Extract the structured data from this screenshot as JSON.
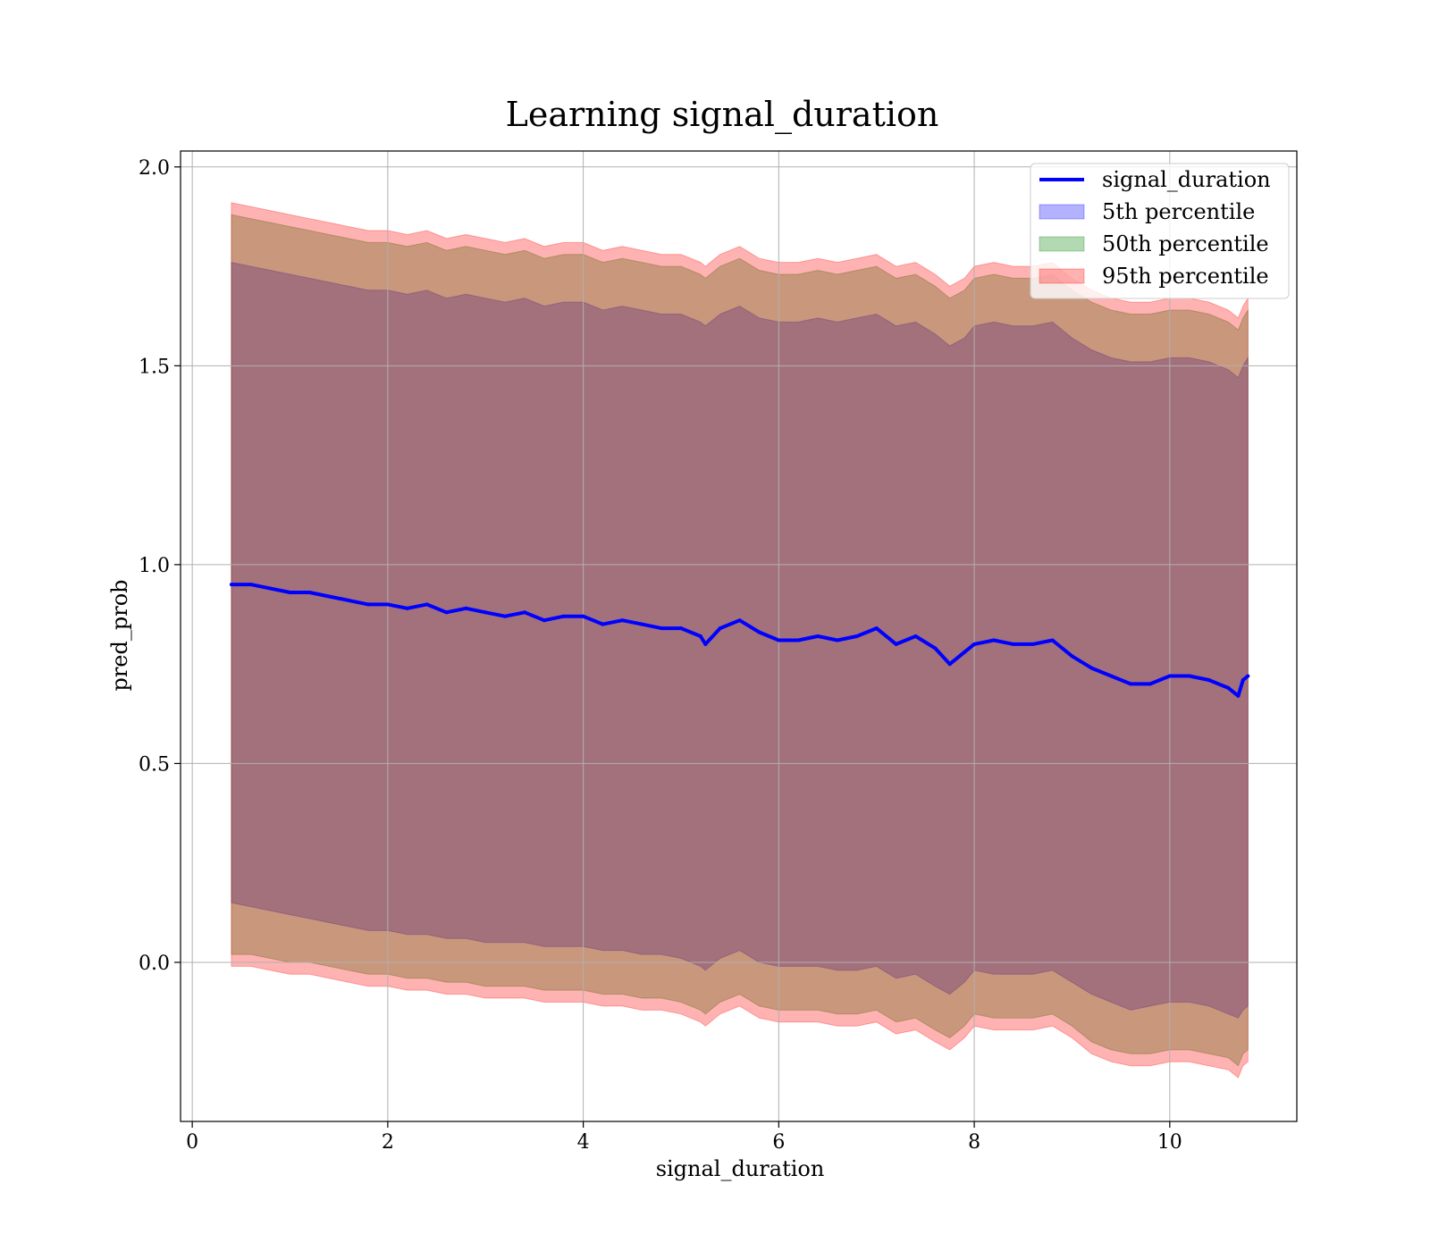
{
  "chart_data": {
    "type": "area",
    "title": "Learning signal_duration",
    "xlabel": "signal_duration",
    "ylabel": "pred_prob",
    "xlim": [
      -0.12,
      11.3
    ],
    "ylim": [
      -0.4,
      2.04
    ],
    "xticks": [
      0,
      2,
      4,
      6,
      8,
      10
    ],
    "yticks": [
      0.0,
      0.5,
      1.0,
      1.5,
      2.0
    ],
    "xtick_labels": [
      "0",
      "2",
      "4",
      "6",
      "8",
      "10"
    ],
    "ytick_labels": [
      "0.0",
      "0.5",
      "1.0",
      "1.5",
      "2.0"
    ],
    "grid": true,
    "legend_position": "top-right",
    "x": [
      0.4,
      0.6,
      0.8,
      1.0,
      1.2,
      1.4,
      1.6,
      1.8,
      2.0,
      2.2,
      2.4,
      2.6,
      2.8,
      3.0,
      3.2,
      3.4,
      3.6,
      3.8,
      4.0,
      4.2,
      4.4,
      4.6,
      4.8,
      5.0,
      5.2,
      5.25,
      5.4,
      5.6,
      5.8,
      6.0,
      6.2,
      6.4,
      6.6,
      6.8,
      7.0,
      7.2,
      7.4,
      7.6,
      7.75,
      7.9,
      8.0,
      8.2,
      8.4,
      8.6,
      8.8,
      9.0,
      9.2,
      9.4,
      9.6,
      9.8,
      10.0,
      10.2,
      10.4,
      10.6,
      10.7,
      10.75,
      10.8
    ],
    "series": [
      {
        "name": "signal_duration",
        "kind": "line",
        "color": "#0000ff",
        "values": [
          0.95,
          0.95,
          0.94,
          0.93,
          0.93,
          0.92,
          0.91,
          0.9,
          0.9,
          0.89,
          0.9,
          0.88,
          0.89,
          0.88,
          0.87,
          0.88,
          0.86,
          0.87,
          0.87,
          0.85,
          0.86,
          0.85,
          0.84,
          0.84,
          0.82,
          0.8,
          0.84,
          0.86,
          0.83,
          0.81,
          0.81,
          0.82,
          0.81,
          0.82,
          0.84,
          0.8,
          0.82,
          0.79,
          0.75,
          0.78,
          0.8,
          0.81,
          0.8,
          0.8,
          0.81,
          0.77,
          0.74,
          0.72,
          0.7,
          0.7,
          0.72,
          0.72,
          0.71,
          0.69,
          0.67,
          0.71,
          0.72
        ]
      },
      {
        "name": "5th percentile",
        "kind": "band",
        "color": "#0000ff",
        "opacity": 0.3,
        "lower": [
          0.15,
          0.14,
          0.13,
          0.12,
          0.11,
          0.1,
          0.09,
          0.08,
          0.08,
          0.07,
          0.07,
          0.06,
          0.06,
          0.05,
          0.05,
          0.05,
          0.04,
          0.04,
          0.04,
          0.03,
          0.03,
          0.02,
          0.02,
          0.01,
          -0.01,
          -0.02,
          0.01,
          0.03,
          0.0,
          -0.01,
          -0.01,
          -0.01,
          -0.02,
          -0.02,
          -0.01,
          -0.04,
          -0.03,
          -0.06,
          -0.08,
          -0.05,
          -0.02,
          -0.03,
          -0.03,
          -0.03,
          -0.02,
          -0.05,
          -0.08,
          -0.1,
          -0.12,
          -0.11,
          -0.1,
          -0.1,
          -0.11,
          -0.13,
          -0.14,
          -0.12,
          -0.11
        ],
        "upper": [
          1.76,
          1.75,
          1.74,
          1.73,
          1.72,
          1.71,
          1.7,
          1.69,
          1.69,
          1.68,
          1.69,
          1.67,
          1.68,
          1.67,
          1.66,
          1.67,
          1.65,
          1.66,
          1.66,
          1.64,
          1.65,
          1.64,
          1.63,
          1.63,
          1.61,
          1.6,
          1.63,
          1.65,
          1.62,
          1.61,
          1.61,
          1.62,
          1.61,
          1.62,
          1.63,
          1.6,
          1.61,
          1.58,
          1.55,
          1.57,
          1.6,
          1.61,
          1.6,
          1.6,
          1.61,
          1.57,
          1.54,
          1.52,
          1.51,
          1.51,
          1.52,
          1.52,
          1.51,
          1.49,
          1.47,
          1.5,
          1.52
        ]
      },
      {
        "name": "50th percentile",
        "kind": "band",
        "color": "#008000",
        "opacity": 0.3,
        "lower": [
          0.02,
          0.02,
          0.01,
          0.0,
          0.0,
          -0.01,
          -0.02,
          -0.03,
          -0.03,
          -0.04,
          -0.04,
          -0.05,
          -0.05,
          -0.06,
          -0.06,
          -0.06,
          -0.07,
          -0.07,
          -0.07,
          -0.08,
          -0.08,
          -0.09,
          -0.09,
          -0.1,
          -0.12,
          -0.13,
          -0.1,
          -0.08,
          -0.11,
          -0.12,
          -0.12,
          -0.12,
          -0.13,
          -0.13,
          -0.12,
          -0.15,
          -0.14,
          -0.17,
          -0.19,
          -0.16,
          -0.13,
          -0.14,
          -0.14,
          -0.14,
          -0.13,
          -0.16,
          -0.2,
          -0.22,
          -0.23,
          -0.23,
          -0.22,
          -0.22,
          -0.23,
          -0.24,
          -0.26,
          -0.23,
          -0.22
        ],
        "upper": [
          1.88,
          1.87,
          1.86,
          1.85,
          1.84,
          1.83,
          1.82,
          1.81,
          1.81,
          1.8,
          1.81,
          1.79,
          1.8,
          1.79,
          1.78,
          1.79,
          1.77,
          1.78,
          1.78,
          1.76,
          1.77,
          1.76,
          1.75,
          1.75,
          1.73,
          1.72,
          1.75,
          1.77,
          1.74,
          1.73,
          1.73,
          1.74,
          1.73,
          1.74,
          1.75,
          1.72,
          1.73,
          1.7,
          1.67,
          1.69,
          1.72,
          1.73,
          1.72,
          1.72,
          1.73,
          1.69,
          1.66,
          1.64,
          1.63,
          1.63,
          1.64,
          1.64,
          1.63,
          1.61,
          1.59,
          1.62,
          1.64
        ]
      },
      {
        "name": "95th percentile",
        "kind": "band",
        "color": "#ff0000",
        "opacity": 0.3,
        "lower": [
          -0.01,
          -0.01,
          -0.02,
          -0.03,
          -0.03,
          -0.04,
          -0.05,
          -0.06,
          -0.06,
          -0.07,
          -0.07,
          -0.08,
          -0.08,
          -0.09,
          -0.09,
          -0.09,
          -0.1,
          -0.1,
          -0.1,
          -0.11,
          -0.11,
          -0.12,
          -0.12,
          -0.13,
          -0.15,
          -0.16,
          -0.13,
          -0.11,
          -0.14,
          -0.15,
          -0.15,
          -0.15,
          -0.16,
          -0.16,
          -0.15,
          -0.18,
          -0.17,
          -0.2,
          -0.22,
          -0.19,
          -0.16,
          -0.17,
          -0.17,
          -0.17,
          -0.16,
          -0.19,
          -0.23,
          -0.25,
          -0.26,
          -0.26,
          -0.25,
          -0.25,
          -0.26,
          -0.27,
          -0.29,
          -0.26,
          -0.25
        ],
        "upper": [
          1.91,
          1.9,
          1.89,
          1.88,
          1.87,
          1.86,
          1.85,
          1.84,
          1.84,
          1.83,
          1.84,
          1.82,
          1.83,
          1.82,
          1.81,
          1.82,
          1.8,
          1.81,
          1.81,
          1.79,
          1.8,
          1.79,
          1.78,
          1.78,
          1.76,
          1.75,
          1.78,
          1.8,
          1.77,
          1.76,
          1.76,
          1.77,
          1.76,
          1.77,
          1.78,
          1.75,
          1.76,
          1.73,
          1.7,
          1.72,
          1.75,
          1.76,
          1.75,
          1.75,
          1.76,
          1.72,
          1.69,
          1.67,
          1.66,
          1.66,
          1.67,
          1.67,
          1.66,
          1.64,
          1.62,
          1.65,
          1.67
        ]
      }
    ]
  }
}
